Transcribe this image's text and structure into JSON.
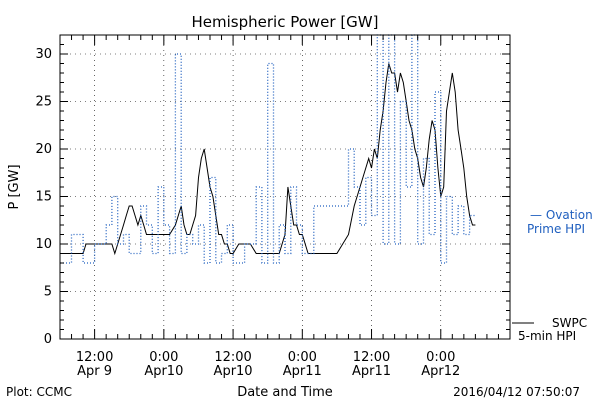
{
  "footer": {
    "plot_credit": "Plot: CCMC",
    "timestamp": "2016/04/12 07:50:07"
  },
  "legend": {
    "ovation_line1": "— Ovation",
    "ovation_line2": "Prime HPI",
    "swpc_line1": "SWPC",
    "swpc_line2": "5-min HPI"
  },
  "colors": {
    "swpc": "#000000",
    "ovation": "#1f5fbf",
    "axes": "#000000"
  },
  "chart_data": {
    "type": "line",
    "title": "Hemispheric Power [GW]",
    "xlabel": "Date and Time",
    "ylabel": "P [GW]",
    "x_unit": "hours since 2016-04-09 00:00",
    "xlim": [
      6,
      84
    ],
    "ylim": [
      0,
      32
    ],
    "yticks": [
      0,
      5,
      10,
      15,
      20,
      25,
      30
    ],
    "xticks": [
      {
        "x": 12,
        "line1": "12:00",
        "line2": "Apr 9"
      },
      {
        "x": 24,
        "line1": "0:00",
        "line2": "Apr10"
      },
      {
        "x": 36,
        "line1": "12:00",
        "line2": "Apr10"
      },
      {
        "x": 48,
        "line1": "0:00",
        "line2": "Apr11"
      },
      {
        "x": 60,
        "line1": "12:00",
        "line2": "Apr11"
      },
      {
        "x": 72,
        "line1": "0:00",
        "line2": "Apr12"
      }
    ],
    "grid": true,
    "series": [
      {
        "name": "SWPC 5-min HPI",
        "style": "solid",
        "x": [
          6,
          10,
          10.5,
          15,
          15.5,
          16.5,
          17,
          17.5,
          18,
          18.5,
          19,
          19.5,
          20,
          20.5,
          21,
          21.5,
          22,
          22.5,
          23,
          24,
          25,
          26,
          27,
          27.5,
          28,
          28.5,
          29,
          29.5,
          30,
          30.5,
          31,
          31.5,
          32,
          32.5,
          33,
          33.5,
          34,
          34.5,
          35,
          35.5,
          36,
          37,
          38,
          39,
          40,
          42,
          44,
          44.5,
          45,
          45.5,
          46,
          46.5,
          47,
          47.5,
          48,
          49,
          50,
          52,
          54,
          55,
          56,
          57,
          58,
          59,
          59.5,
          60,
          60.5,
          61,
          61.5,
          62,
          62.5,
          63,
          63.5,
          64,
          64.5,
          65,
          65.5,
          66,
          66.5,
          67,
          67.5,
          68,
          68.5,
          69,
          69.5,
          70,
          70.5,
          71,
          71.5,
          72,
          72.5,
          73,
          73.5,
          74,
          74.5,
          75,
          75.5,
          76,
          76.5,
          77,
          77.5,
          78
        ],
        "y": [
          9,
          9,
          10,
          10,
          9,
          11,
          12,
          13,
          14,
          14,
          13,
          12,
          13,
          12,
          11,
          11,
          11,
          11,
          11,
          11,
          11,
          12,
          14,
          12,
          11,
          11,
          12,
          13,
          17,
          19,
          20,
          18,
          16,
          15,
          13,
          11,
          11,
          10,
          10,
          9,
          9,
          10,
          10,
          10,
          9,
          9,
          9,
          10,
          11,
          16,
          14,
          12,
          12,
          11,
          11,
          9,
          9,
          9,
          9,
          10,
          11,
          14,
          16,
          18,
          19,
          18,
          20,
          19,
          22,
          24,
          27,
          29,
          28,
          28,
          26,
          28,
          27,
          25,
          23,
          22,
          20,
          19,
          17,
          16,
          18,
          21,
          23,
          22,
          18,
          15,
          16,
          24,
          26,
          28,
          26,
          22,
          20,
          18,
          15,
          13,
          12,
          12
        ]
      },
      {
        "name": "Ovation Prime HPI",
        "style": "dotted",
        "x": [
          6,
          8,
          8,
          10,
          10,
          12,
          12,
          14,
          14,
          15,
          15,
          16,
          16,
          17,
          17,
          18,
          18,
          20,
          20,
          21,
          21,
          22,
          22,
          23,
          23,
          24,
          24,
          25,
          25,
          26,
          26,
          27,
          27,
          28,
          28,
          29,
          29,
          30,
          30,
          31,
          31,
          32,
          32,
          33,
          33,
          34,
          34,
          35,
          35,
          36,
          36,
          38,
          38,
          40,
          40,
          41,
          41,
          42,
          42,
          43,
          43,
          44,
          44,
          45,
          45,
          46,
          46,
          47,
          47,
          48,
          48,
          50,
          50,
          56,
          56,
          57,
          57,
          58,
          58,
          59,
          59,
          60,
          60,
          61,
          61,
          62,
          62,
          63,
          63,
          64,
          64,
          65,
          65,
          66,
          66,
          67,
          67,
          68,
          68,
          69,
          69,
          70,
          70,
          71,
          71,
          72,
          72,
          73,
          73,
          74,
          74,
          75,
          75,
          76,
          76,
          77,
          77,
          78
        ],
        "y": [
          8,
          8,
          11,
          11,
          8,
          8,
          10,
          10,
          12,
          12,
          15,
          15,
          10,
          10,
          11,
          11,
          9,
          9,
          14,
          14,
          12,
          12,
          9,
          9,
          16,
          16,
          12,
          12,
          9,
          9,
          30,
          30,
          9,
          9,
          11,
          11,
          10,
          10,
          12,
          12,
          8,
          8,
          17,
          17,
          8,
          8,
          9,
          9,
          12,
          12,
          8,
          8,
          10,
          10,
          16,
          16,
          8,
          8,
          29,
          29,
          8,
          8,
          12,
          12,
          9,
          9,
          16,
          16,
          12,
          12,
          9,
          9,
          14,
          14,
          20,
          20,
          16,
          16,
          12,
          12,
          17,
          17,
          13,
          13,
          32,
          32,
          10,
          10,
          32,
          32,
          10,
          10,
          25,
          25,
          16,
          16,
          32,
          32,
          10,
          10,
          19,
          19,
          11,
          11,
          26,
          26,
          8,
          8,
          15,
          15,
          11,
          11,
          14,
          14,
          11,
          11,
          13,
          13
        ]
      }
    ]
  }
}
